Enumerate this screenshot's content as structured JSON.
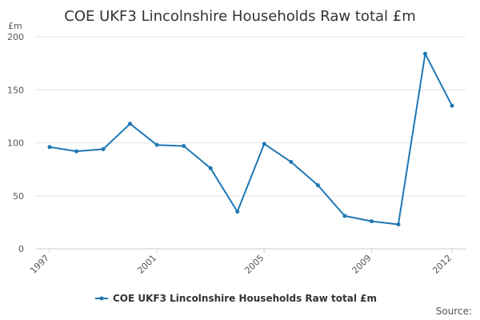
{
  "chart_data": {
    "type": "line",
    "title": "COE UKF3 Lincolnshire Households Raw total £m",
    "ylabel": "£m",
    "xlabel": "",
    "ylim": [
      0,
      200
    ],
    "yticks": [
      "0",
      "50",
      "100",
      "150",
      "200"
    ],
    "xlim": [
      1997,
      2012
    ],
    "xticks": [
      "1997",
      "2001",
      "2005",
      "2009",
      "2012"
    ],
    "grid": true,
    "legend_position": "bottom",
    "series": [
      {
        "name": "COE UKF3 Lincolnshire Households Raw total £m",
        "color": "#1f77b4",
        "x": [
          1997,
          1998,
          1999,
          2000,
          2001,
          2002,
          2003,
          2004,
          2005,
          2006,
          2007,
          2008,
          2009,
          2010,
          2011,
          2012
        ],
        "y": [
          96,
          92,
          94,
          118,
          98,
          97,
          76,
          35,
          99,
          82,
          60,
          31,
          26,
          23,
          184,
          135
        ]
      }
    ],
    "source": "Source:"
  }
}
